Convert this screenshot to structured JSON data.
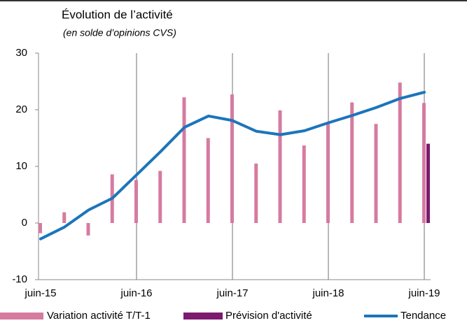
{
  "chart_data": {
    "type": "bar",
    "title": "Évolution de l’activité",
    "subtitle": "(en solde d’opinions CVS)",
    "categories": [
      "juin-15",
      null,
      null,
      null,
      "juin-16",
      null,
      null,
      null,
      "juin-17",
      null,
      null,
      null,
      "juin-18",
      null,
      null,
      null,
      "juin-19"
    ],
    "series": [
      {
        "name": "Variation activité T/T-1",
        "type": "bar",
        "color": "#d67ba0",
        "values": [
          -1.8,
          1.9,
          -2.2,
          8.6,
          7.6,
          9.2,
          22.2,
          15.0,
          22.7,
          10.5,
          19.9,
          13.7,
          17.7,
          21.3,
          17.5,
          24.8,
          21.2
        ]
      },
      {
        "name": "Prévision d'activité",
        "type": "bar",
        "color": "#7b1a6e",
        "values": [
          null,
          null,
          null,
          null,
          null,
          null,
          null,
          null,
          null,
          null,
          null,
          null,
          null,
          null,
          null,
          null,
          14
        ]
      },
      {
        "name": "Tendance",
        "type": "line",
        "color": "#1b75bb",
        "values": [
          -2.8,
          -0.7,
          2.3,
          4.4,
          8.5,
          12.6,
          16.9,
          18.9,
          18.1,
          16.2,
          15.6,
          16.3,
          17.7,
          19.0,
          20.4,
          22.0,
          23.1
        ]
      }
    ],
    "ylim": [
      -10,
      30
    ],
    "yticks": [
      -10,
      0,
      10,
      20,
      30
    ],
    "legend": "bottom"
  }
}
